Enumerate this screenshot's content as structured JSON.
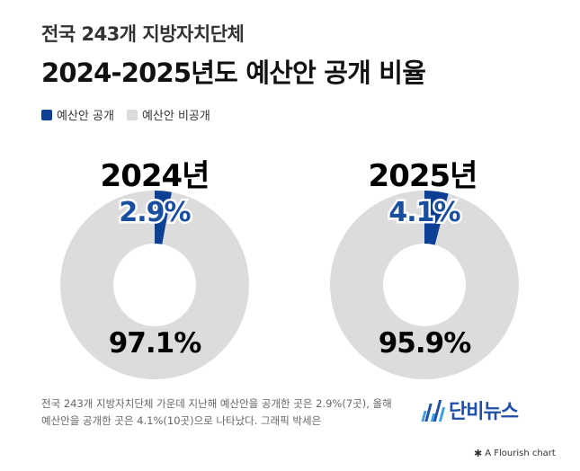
{
  "header": {
    "subtitle": "전국 243개 지방자치단체",
    "title": "2024-2025년도 예산안 공개 비율"
  },
  "legend": [
    {
      "label": "예산안 공개",
      "color": "#0d3f95"
    },
    {
      "label": "예산안 비공개",
      "color": "#dcdcde"
    }
  ],
  "chart_data": [
    {
      "type": "pie",
      "title": "2024년",
      "labels": [
        "예산안 공개",
        "예산안 비공개"
      ],
      "values": [
        2.9,
        97.1
      ],
      "value_labels": [
        "2.9%",
        "97.1%"
      ],
      "colors": [
        "#0d3f95",
        "#dcdcde"
      ]
    },
    {
      "type": "pie",
      "title": "2025년",
      "labels": [
        "예산안 공개",
        "예산안 비공개"
      ],
      "values": [
        4.1,
        95.9
      ],
      "value_labels": [
        "4.1%",
        "95.9%"
      ],
      "colors": [
        "#0d3f95",
        "#dcdcde"
      ]
    }
  ],
  "caption": {
    "line1": "전국 243개 지방자치단체 가운데 지난해 예산안을 공개한 곳은 2.9%(7곳), 올해",
    "line2": "예산안을 공개한 곳은 4.1%(10곳)으로 나타났다. 그래픽 박세은"
  },
  "brand": {
    "name": "단비뉴스",
    "colors": [
      "#3da0e0",
      "#1f4fa8"
    ]
  },
  "footer": {
    "icon": "flourish-star-icon",
    "text": "A Flourish chart"
  }
}
